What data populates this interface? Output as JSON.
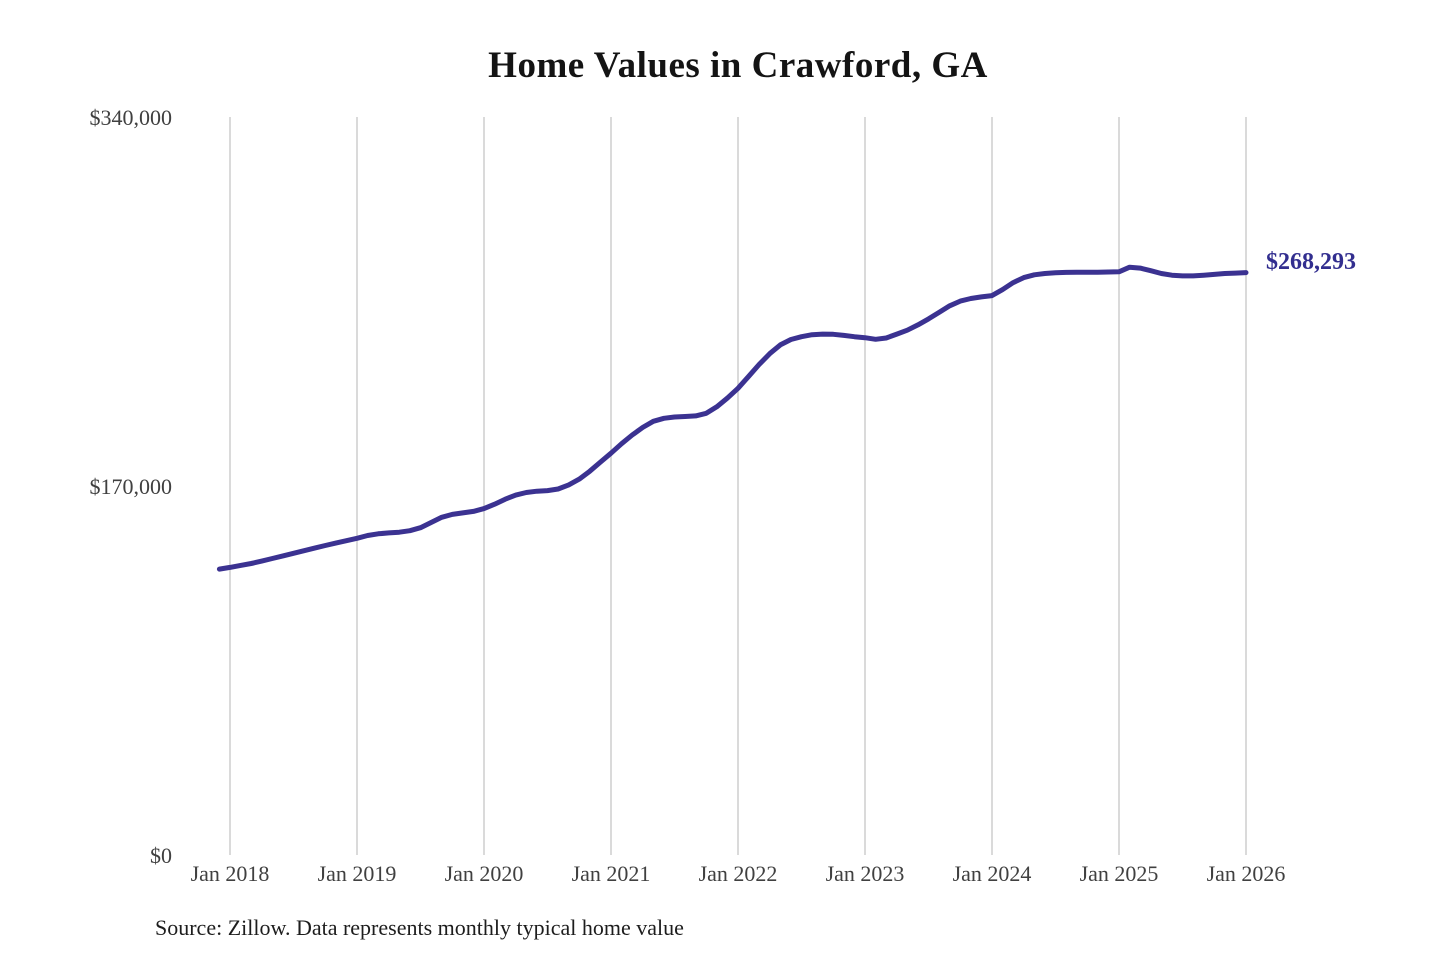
{
  "colors": {
    "line": "#3b3291",
    "end_label": "#322e8f",
    "grid": "#cbcbcb",
    "axis_text": "#404040",
    "title_text": "#141414",
    "source_text": "#1d1d1d",
    "background": "#ffffff"
  },
  "chart_data": {
    "type": "line",
    "title": "Home Values in Crawford, GA",
    "note": "Source: Zillow. Data represents monthly typical home value",
    "final_value_label": "$268,293",
    "final_value": 268293,
    "x_tick_labels": [
      "Jan 2018",
      "Jan 2019",
      "Jan 2020",
      "Jan 2021",
      "Jan 2022",
      "Jan 2023",
      "Jan 2024",
      "Jan 2025",
      "Jan 2026"
    ],
    "y_ticks": [
      0,
      170000,
      340000
    ],
    "y_tick_labels": [
      "$0",
      "$170,000",
      "$340,000"
    ],
    "ylim": [
      0,
      340000
    ],
    "grid": "vertical-only",
    "legend": "none",
    "series": [
      {
        "name": "Monthly typical home value",
        "start_month": "Dec 2017",
        "end_month": "Jan 2026",
        "interval": "monthly",
        "values": [
          131700,
          132500,
          133400,
          134300,
          135400,
          136600,
          137800,
          139000,
          140200,
          141400,
          142600,
          143700,
          144800,
          145900,
          147200,
          148000,
          148400,
          148700,
          149400,
          150800,
          153200,
          155600,
          156900,
          157600,
          158300,
          159600,
          161600,
          163900,
          165800,
          167000,
          167600,
          167900,
          168600,
          170500,
          173200,
          176800,
          181000,
          185100,
          189500,
          193500,
          197000,
          199800,
          201200,
          201800,
          202000,
          202300,
          203500,
          206500,
          210500,
          215000,
          220500,
          226000,
          231000,
          235000,
          237500,
          238800,
          239700,
          240000,
          239900,
          239400,
          238800,
          238300,
          237600,
          238200,
          240000,
          241800,
          244200,
          247000,
          250000,
          253000,
          255200,
          256400,
          257100,
          257700,
          260500,
          263700,
          266000,
          267300,
          267900,
          268200,
          268400,
          268500,
          268500,
          268500,
          268600,
          268700,
          270800,
          270400,
          269200,
          267900,
          267100,
          266800,
          266800,
          267100,
          267500,
          267900,
          268100,
          268293
        ]
      }
    ]
  }
}
